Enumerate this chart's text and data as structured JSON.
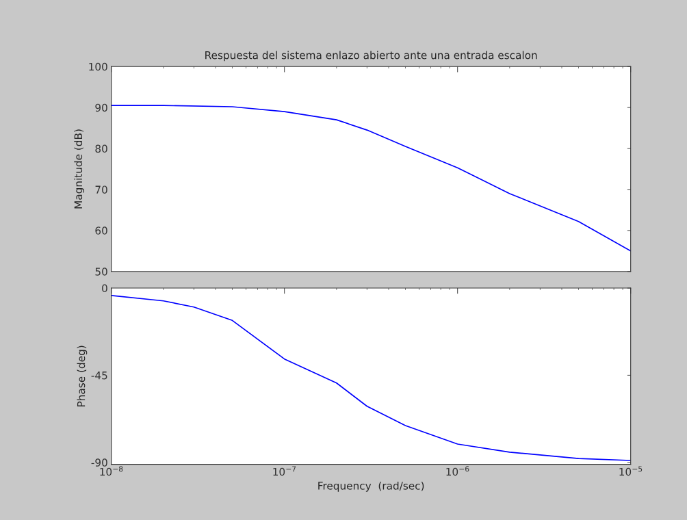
{
  "chart_data": [
    {
      "type": "line",
      "title": "Respuesta del sistema enlazo abierto ante una entrada escalon",
      "ylabel": "Magnitude (dB)",
      "log": "x",
      "grid": false,
      "tick_labels": "y",
      "x": [
        1e-08,
        2e-08,
        5e-08,
        1e-07,
        2e-07,
        3e-07,
        5e-07,
        1e-06,
        2e-06,
        5e-06,
        1e-05
      ],
      "series": [
        {
          "color": "#0000ff",
          "values": [
            90.5,
            90.5,
            90.2,
            89.0,
            87.0,
            84.5,
            80.5,
            75.3,
            69.0,
            62.2,
            55.0
          ]
        }
      ],
      "xlim": [
        1e-08,
        1e-05
      ],
      "ylim": [
        50,
        100
      ],
      "yticks": [
        50,
        60,
        70,
        80,
        90,
        100
      ]
    },
    {
      "type": "line",
      "xlabel": "Frequency  (rad/sec)",
      "ylabel": "Phase (deg)",
      "log": "x",
      "grid": false,
      "x": [
        1e-08,
        2e-08,
        3e-08,
        5e-08,
        1e-07,
        2e-07,
        3e-07,
        5e-07,
        1e-06,
        2e-06,
        5e-06,
        1e-05
      ],
      "series": [
        {
          "color": "#0000ff",
          "values": [
            -3.8,
            -6.6,
            -9.8,
            -16.7,
            -36.6,
            -49,
            -61,
            -71,
            -80.5,
            -84.7,
            -88,
            -89
          ]
        }
      ],
      "xlim": [
        1e-08,
        1e-05
      ],
      "ylim": [
        -91,
        0
      ],
      "yticks": [
        -90,
        -45,
        0
      ],
      "xticks": [
        {
          "value": 1e-08,
          "label": "10$^{−8}$"
        },
        {
          "value": 1e-07,
          "label": "10$^{−7}$"
        },
        {
          "value": 1e-06,
          "label": "10$^{−6}$"
        },
        {
          "value": 1e-05,
          "label": "10$^{−5}$"
        }
      ]
    }
  ]
}
